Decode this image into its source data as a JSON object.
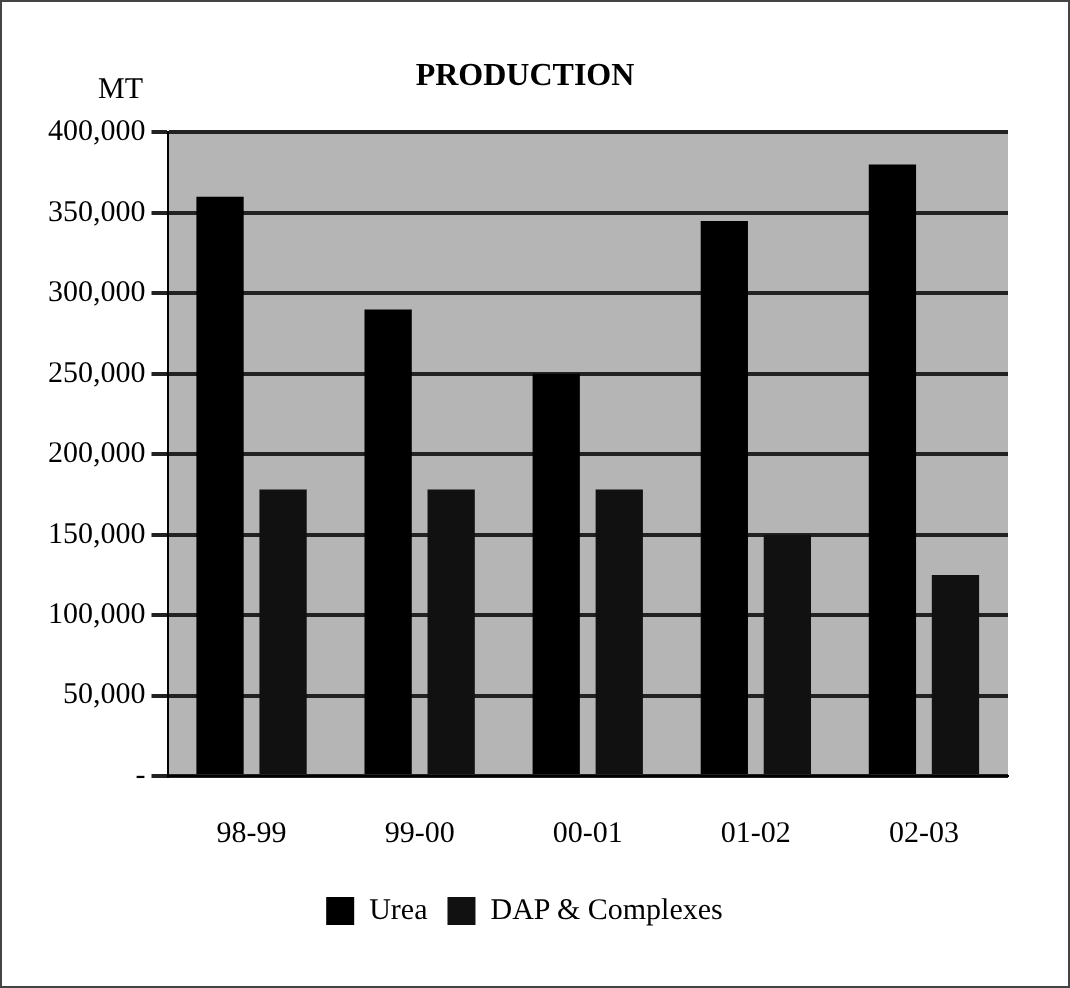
{
  "chart_data": {
    "type": "bar",
    "title": "PRODUCTION",
    "ylabel": "MT",
    "categories": [
      "98-99",
      "99-00",
      "00-01",
      "01-02",
      "02-03"
    ],
    "series": [
      {
        "name": "Urea",
        "color": "#000000",
        "values": [
          360000,
          290000,
          250000,
          345000,
          380000
        ]
      },
      {
        "name": "DAP & Complexes",
        "color": "#111111",
        "values": [
          178000,
          178000,
          178000,
          150000,
          125000
        ]
      }
    ],
    "ylim": [
      0,
      400000
    ],
    "yticks": [
      {
        "value": 0,
        "label": "-"
      },
      {
        "value": 50000,
        "label": "50,000"
      },
      {
        "value": 100000,
        "label": "100,000"
      },
      {
        "value": 150000,
        "label": "150,000"
      },
      {
        "value": 200000,
        "label": "200,000"
      },
      {
        "value": 250000,
        "label": "250,000"
      },
      {
        "value": 300000,
        "label": "300,000"
      },
      {
        "value": 350000,
        "label": "350,000"
      },
      {
        "value": 400000,
        "label": "400,000"
      }
    ],
    "grid": "y",
    "legend": "bottom"
  }
}
